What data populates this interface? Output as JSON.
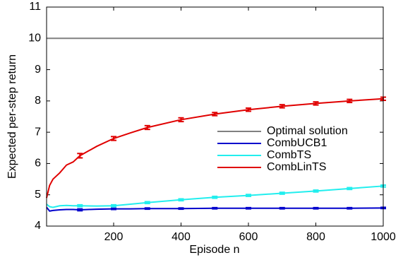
{
  "chart_data": {
    "type": "line",
    "xlabel": "Episode n",
    "ylabel": "Expected per-step return",
    "x": [
      1,
      10,
      20,
      40,
      60,
      80,
      100,
      150,
      200,
      250,
      300,
      400,
      500,
      600,
      700,
      800,
      900,
      1000
    ],
    "series": [
      {
        "name": "Optimal solution",
        "color": "#808080",
        "values": [
          10,
          10,
          10,
          10,
          10,
          10,
          10,
          10,
          10,
          10,
          10,
          10,
          10,
          10,
          10,
          10,
          10,
          10
        ]
      },
      {
        "name": "CombUCB1",
        "color": "#0000cc",
        "values": [
          4.6,
          4.48,
          4.5,
          4.52,
          4.53,
          4.53,
          4.52,
          4.54,
          4.55,
          4.55,
          4.56,
          4.56,
          4.57,
          4.57,
          4.57,
          4.57,
          4.57,
          4.58
        ],
        "errors": [
          null,
          null,
          null,
          null,
          null,
          null,
          0.03,
          null,
          0.02,
          null,
          0.02,
          0.02,
          0.02,
          0.02,
          0.02,
          0.02,
          0.02,
          0.02
        ]
      },
      {
        "name": "CombTS",
        "color": "#22eeee",
        "values": [
          4.7,
          4.62,
          4.6,
          4.65,
          4.66,
          4.65,
          4.65,
          4.64,
          4.65,
          4.7,
          4.75,
          4.84,
          4.92,
          4.98,
          5.05,
          5.12,
          5.2,
          5.28
        ],
        "errors": [
          null,
          null,
          null,
          null,
          null,
          null,
          0.03,
          null,
          0.03,
          null,
          0.03,
          0.03,
          0.03,
          0.03,
          0.03,
          0.03,
          0.03,
          0.03
        ]
      },
      {
        "name": "CombLinTS",
        "color": "#e00000",
        "values": [
          4.9,
          5.3,
          5.5,
          5.7,
          5.95,
          6.05,
          6.25,
          6.55,
          6.8,
          6.98,
          7.15,
          7.4,
          7.58,
          7.72,
          7.83,
          7.92,
          8.0,
          8.07
        ],
        "errors": [
          null,
          null,
          null,
          null,
          null,
          null,
          0.07,
          null,
          0.06,
          null,
          0.06,
          0.06,
          0.05,
          0.05,
          0.05,
          0.05,
          0.05,
          0.05
        ]
      }
    ],
    "xlim": [
      1,
      1000
    ],
    "ylim": [
      4,
      11
    ],
    "xticks": [
      200,
      400,
      600,
      800,
      1000
    ],
    "yticks": [
      4,
      5,
      6,
      7,
      8,
      9,
      10,
      11
    ],
    "legend": "center-right"
  }
}
